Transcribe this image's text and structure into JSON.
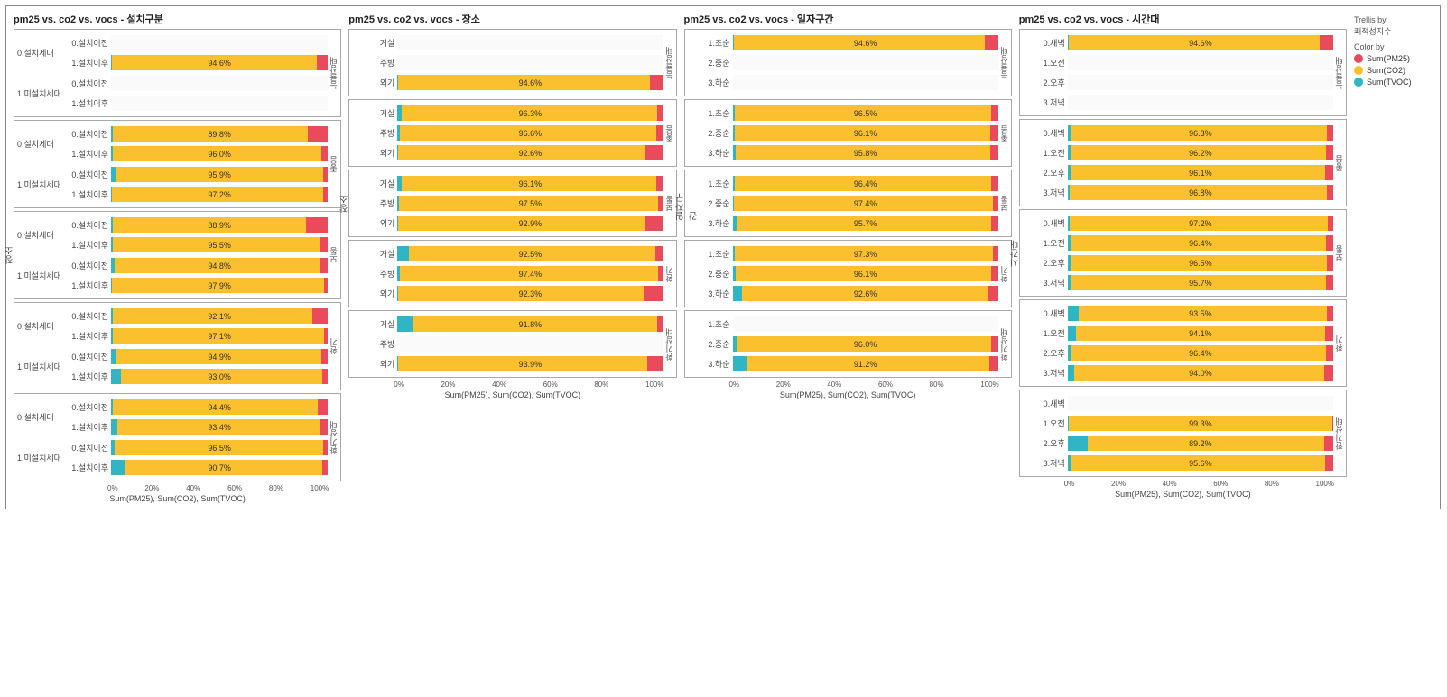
{
  "colors": {
    "pm25": "#e94b5b",
    "co2": "#fbc02d",
    "tvoc": "#2fb5c4",
    "border": "#aaaaaa",
    "grid": "#e0e0e0",
    "bg": "#ffffff",
    "text": "#333333"
  },
  "legend": {
    "trellis_title": "Trellis by",
    "trellis_field": "쾌적성지수",
    "color_title": "Color by",
    "items": [
      {
        "label": "Sum(PM25)",
        "color": "#e94b5b"
      },
      {
        "label": "Sum(CO2)",
        "color": "#fbc02d"
      },
      {
        "label": "Sum(TVOC)",
        "color": "#2fb5c4"
      }
    ]
  },
  "x_ticks": [
    "0%",
    "20%",
    "40%",
    "60%",
    "80%",
    "100%"
  ],
  "x_title": "Sum(PM25), Sum(CO2), Sum(TVOC)",
  "panels": [
    {
      "title": "pm25 vs. co2 vs. vocs - 설치구분",
      "has_group_label": true,
      "yaxis": null,
      "trellis": [
        {
          "label": "능률상태",
          "yaxis": null,
          "groups": [
            {
              "glabel": "0.설치세대",
              "rows": [
                {
                  "cat": "0.설치이전",
                  "co2": 0,
                  "tvoc": 0,
                  "pm25": 0,
                  "value": ""
                },
                {
                  "cat": "1.설치이후",
                  "co2": 94.6,
                  "tvoc": 0.5,
                  "pm25": 4.9,
                  "value": "94.6%"
                }
              ]
            },
            {
              "glabel": "1.미설치세대",
              "rows": [
                {
                  "cat": "0.설치이전",
                  "co2": 0,
                  "tvoc": 0,
                  "pm25": 0,
                  "value": ""
                },
                {
                  "cat": "1.설치이후",
                  "co2": 0,
                  "tvoc": 0,
                  "pm25": 0,
                  "value": ""
                }
              ]
            }
          ]
        },
        {
          "label": "좋음",
          "yaxis": null,
          "groups": [
            {
              "glabel": "0.설치세대",
              "rows": [
                {
                  "cat": "0.설치이전",
                  "co2": 89.8,
                  "tvoc": 1.0,
                  "pm25": 9.2,
                  "value": "89.8%"
                },
                {
                  "cat": "1.설치이후",
                  "co2": 96.0,
                  "tvoc": 0.8,
                  "pm25": 3.2,
                  "value": "96.0%"
                }
              ]
            },
            {
              "glabel": "1.미설치세대",
              "rows": [
                {
                  "cat": "0.설치이전",
                  "co2": 95.9,
                  "tvoc": 2.0,
                  "pm25": 2.1,
                  "value": "95.9%"
                },
                {
                  "cat": "1.설치이후",
                  "co2": 97.2,
                  "tvoc": 0.6,
                  "pm25": 2.2,
                  "value": "97.2%"
                }
              ]
            }
          ]
        },
        {
          "label": "보통",
          "yaxis": "장소",
          "groups": [
            {
              "glabel": "0.설치세대",
              "rows": [
                {
                  "cat": "0.설치이전",
                  "co2": 88.9,
                  "tvoc": 0.8,
                  "pm25": 10.3,
                  "value": "88.9%"
                },
                {
                  "cat": "1.설치이후",
                  "co2": 95.5,
                  "tvoc": 1.0,
                  "pm25": 3.5,
                  "value": "95.5%"
                }
              ]
            },
            {
              "glabel": "1.미설치세대",
              "rows": [
                {
                  "cat": "0.설치이전",
                  "co2": 94.8,
                  "tvoc": 1.5,
                  "pm25": 3.7,
                  "value": "94.8%"
                },
                {
                  "cat": "1.설치이후",
                  "co2": 97.9,
                  "tvoc": 0.5,
                  "pm25": 1.6,
                  "value": "97.9%"
                }
              ]
            }
          ]
        },
        {
          "label": "환기",
          "yaxis": null,
          "groups": [
            {
              "glabel": "0.설치세대",
              "rows": [
                {
                  "cat": "0.설치이전",
                  "co2": 92.1,
                  "tvoc": 0.8,
                  "pm25": 7.1,
                  "value": "92.1%"
                },
                {
                  "cat": "1.설치이후",
                  "co2": 97.1,
                  "tvoc": 1.0,
                  "pm25": 1.9,
                  "value": "97.1%"
                }
              ]
            },
            {
              "glabel": "1.미설치세대",
              "rows": [
                {
                  "cat": "0.설치이전",
                  "co2": 94.9,
                  "tvoc": 2.0,
                  "pm25": 3.1,
                  "value": "94.9%"
                },
                {
                  "cat": "1.설치이후",
                  "co2": 93.0,
                  "tvoc": 4.5,
                  "pm25": 2.5,
                  "value": "93.0%"
                }
              ]
            }
          ]
        },
        {
          "label": "환기상태",
          "yaxis": null,
          "groups": [
            {
              "glabel": "0.설치세대",
              "rows": [
                {
                  "cat": "0.설치이전",
                  "co2": 94.4,
                  "tvoc": 1.0,
                  "pm25": 4.6,
                  "value": "94.4%"
                },
                {
                  "cat": "1.설치이후",
                  "co2": 93.4,
                  "tvoc": 3.0,
                  "pm25": 3.6,
                  "value": "93.4%"
                }
              ]
            },
            {
              "glabel": "1.미설치세대",
              "rows": [
                {
                  "cat": "0.설치이전",
                  "co2": 96.5,
                  "tvoc": 1.5,
                  "pm25": 2.0,
                  "value": "96.5%"
                },
                {
                  "cat": "1.설치이후",
                  "co2": 90.7,
                  "tvoc": 6.5,
                  "pm25": 2.8,
                  "value": "90.7%"
                }
              ]
            }
          ]
        }
      ]
    },
    {
      "title": "pm25 vs. co2 vs. vocs - 장소",
      "has_group_label": false,
      "yaxis": "장소",
      "trellis": [
        {
          "label": "능률상태",
          "groups": [
            {
              "glabel": "",
              "rows": [
                {
                  "cat": "거실",
                  "co2": 0,
                  "tvoc": 0,
                  "pm25": 0,
                  "value": ""
                },
                {
                  "cat": "주방",
                  "co2": 0,
                  "tvoc": 0,
                  "pm25": 0,
                  "value": ""
                },
                {
                  "cat": "외기",
                  "co2": 94.6,
                  "tvoc": 0.4,
                  "pm25": 5.0,
                  "value": "94.6%"
                }
              ]
            }
          ]
        },
        {
          "label": "좋음",
          "groups": [
            {
              "glabel": "",
              "rows": [
                {
                  "cat": "거실",
                  "co2": 96.3,
                  "tvoc": 1.5,
                  "pm25": 2.2,
                  "value": "96.3%"
                },
                {
                  "cat": "주방",
                  "co2": 96.6,
                  "tvoc": 0.8,
                  "pm25": 2.6,
                  "value": "96.6%"
                },
                {
                  "cat": "외기",
                  "co2": 92.6,
                  "tvoc": 0.4,
                  "pm25": 7.0,
                  "value": "92.6%"
                }
              ]
            }
          ]
        },
        {
          "label": "보통",
          "yaxis": "장소",
          "groups": [
            {
              "glabel": "",
              "rows": [
                {
                  "cat": "거실",
                  "co2": 96.1,
                  "tvoc": 1.5,
                  "pm25": 2.4,
                  "value": "96.1%"
                },
                {
                  "cat": "주방",
                  "co2": 97.5,
                  "tvoc": 0.7,
                  "pm25": 1.8,
                  "value": "97.5%"
                },
                {
                  "cat": "외기",
                  "co2": 92.9,
                  "tvoc": 0.3,
                  "pm25": 6.8,
                  "value": "92.9%"
                }
              ]
            }
          ]
        },
        {
          "label": "환기",
          "groups": [
            {
              "glabel": "",
              "rows": [
                {
                  "cat": "거실",
                  "co2": 92.5,
                  "tvoc": 4.5,
                  "pm25": 3.0,
                  "value": "92.5%"
                },
                {
                  "cat": "주방",
                  "co2": 97.4,
                  "tvoc": 0.8,
                  "pm25": 1.8,
                  "value": "97.4%"
                },
                {
                  "cat": "외기",
                  "co2": 92.3,
                  "tvoc": 0.3,
                  "pm25": 7.4,
                  "value": "92.3%"
                }
              ]
            }
          ]
        },
        {
          "label": "환기상태",
          "groups": [
            {
              "glabel": "",
              "rows": [
                {
                  "cat": "거실",
                  "co2": 91.8,
                  "tvoc": 6.0,
                  "pm25": 2.2,
                  "value": "91.8%"
                },
                {
                  "cat": "주방",
                  "co2": 0,
                  "tvoc": 0,
                  "pm25": 0,
                  "value": ""
                },
                {
                  "cat": "외기",
                  "co2": 93.9,
                  "tvoc": 0.3,
                  "pm25": 5.8,
                  "value": "93.9%"
                }
              ]
            }
          ]
        }
      ]
    },
    {
      "title": "pm25 vs. co2 vs. vocs - 일자구간",
      "has_group_label": false,
      "yaxis": "일자구간",
      "trellis": [
        {
          "label": "능률상태",
          "groups": [
            {
              "glabel": "",
              "rows": [
                {
                  "cat": "1.초순",
                  "co2": 94.6,
                  "tvoc": 0.4,
                  "pm25": 5.0,
                  "value": "94.6%"
                },
                {
                  "cat": "2.중순",
                  "co2": 0,
                  "tvoc": 0,
                  "pm25": 0,
                  "value": ""
                },
                {
                  "cat": "3.하순",
                  "co2": 0,
                  "tvoc": 0,
                  "pm25": 0,
                  "value": ""
                }
              ]
            }
          ]
        },
        {
          "label": "좋음",
          "groups": [
            {
              "glabel": "",
              "rows": [
                {
                  "cat": "1.초순",
                  "co2": 96.5,
                  "tvoc": 0.8,
                  "pm25": 2.7,
                  "value": "96.5%"
                },
                {
                  "cat": "2.중순",
                  "co2": 96.1,
                  "tvoc": 1.0,
                  "pm25": 2.9,
                  "value": "96.1%"
                },
                {
                  "cat": "3.하순",
                  "co2": 95.8,
                  "tvoc": 1.2,
                  "pm25": 3.0,
                  "value": "95.8%"
                }
              ]
            }
          ]
        },
        {
          "label": "보통",
          "yaxis": "일자구간",
          "groups": [
            {
              "glabel": "",
              "rows": [
                {
                  "cat": "1.초순",
                  "co2": 96.4,
                  "tvoc": 0.8,
                  "pm25": 2.8,
                  "value": "96.4%"
                },
                {
                  "cat": "2.중순",
                  "co2": 97.4,
                  "tvoc": 0.6,
                  "pm25": 2.0,
                  "value": "97.4%"
                },
                {
                  "cat": "3.하순",
                  "co2": 95.7,
                  "tvoc": 1.5,
                  "pm25": 2.8,
                  "value": "95.7%"
                }
              ]
            }
          ]
        },
        {
          "label": "환기",
          "groups": [
            {
              "glabel": "",
              "rows": [
                {
                  "cat": "1.초순",
                  "co2": 97.3,
                  "tvoc": 0.7,
                  "pm25": 2.0,
                  "value": "97.3%"
                },
                {
                  "cat": "2.중순",
                  "co2": 96.1,
                  "tvoc": 1.2,
                  "pm25": 2.7,
                  "value": "96.1%"
                },
                {
                  "cat": "3.하순",
                  "co2": 92.6,
                  "tvoc": 3.5,
                  "pm25": 3.9,
                  "value": "92.6%"
                }
              ]
            }
          ]
        },
        {
          "label": "환기상태",
          "groups": [
            {
              "glabel": "",
              "rows": [
                {
                  "cat": "1.초순",
                  "co2": 0,
                  "tvoc": 0,
                  "pm25": 0,
                  "value": ""
                },
                {
                  "cat": "2.중순",
                  "co2": 96.0,
                  "tvoc": 1.5,
                  "pm25": 2.5,
                  "value": "96.0%"
                },
                {
                  "cat": "3.하순",
                  "co2": 91.2,
                  "tvoc": 5.5,
                  "pm25": 3.3,
                  "value": "91.2%"
                }
              ]
            }
          ]
        }
      ]
    },
    {
      "title": "pm25 vs. co2 vs. vocs - 시간대",
      "has_group_label": false,
      "yaxis": "시간대",
      "trellis": [
        {
          "label": "능률상태",
          "groups": [
            {
              "glabel": "",
              "rows": [
                {
                  "cat": "0.새벽",
                  "co2": 94.6,
                  "tvoc": 0.4,
                  "pm25": 5.0,
                  "value": "94.6%"
                },
                {
                  "cat": "1.오전",
                  "co2": 0,
                  "tvoc": 0,
                  "pm25": 0,
                  "value": ""
                },
                {
                  "cat": "2.오후",
                  "co2": 0,
                  "tvoc": 0,
                  "pm25": 0,
                  "value": ""
                },
                {
                  "cat": "3.저녁",
                  "co2": 0,
                  "tvoc": 0,
                  "pm25": 0,
                  "value": ""
                }
              ]
            }
          ]
        },
        {
          "label": "좋음",
          "groups": [
            {
              "glabel": "",
              "rows": [
                {
                  "cat": "0.새벽",
                  "co2": 96.3,
                  "tvoc": 1.2,
                  "pm25": 2.5,
                  "value": "96.3%"
                },
                {
                  "cat": "1.오전",
                  "co2": 96.2,
                  "tvoc": 1.0,
                  "pm25": 2.8,
                  "value": "96.2%"
                },
                {
                  "cat": "2.오후",
                  "co2": 96.1,
                  "tvoc": 1.0,
                  "pm25": 2.9,
                  "value": "96.1%"
                },
                {
                  "cat": "3.저녁",
                  "co2": 96.8,
                  "tvoc": 0.8,
                  "pm25": 2.4,
                  "value": "96.8%"
                }
              ]
            }
          ]
        },
        {
          "label": "보통",
          "yaxis": "시간대",
          "groups": [
            {
              "glabel": "",
              "rows": [
                {
                  "cat": "0.새벽",
                  "co2": 97.2,
                  "tvoc": 0.8,
                  "pm25": 2.0,
                  "value": "97.2%"
                },
                {
                  "cat": "1.오전",
                  "co2": 96.4,
                  "tvoc": 1.0,
                  "pm25": 2.6,
                  "value": "96.4%"
                },
                {
                  "cat": "2.오후",
                  "co2": 96.5,
                  "tvoc": 1.0,
                  "pm25": 2.5,
                  "value": "96.5%"
                },
                {
                  "cat": "3.저녁",
                  "co2": 95.7,
                  "tvoc": 1.5,
                  "pm25": 2.8,
                  "value": "95.7%"
                }
              ]
            }
          ]
        },
        {
          "label": "환기",
          "groups": [
            {
              "glabel": "",
              "rows": [
                {
                  "cat": "0.새벽",
                  "co2": 93.5,
                  "tvoc": 4.0,
                  "pm25": 2.5,
                  "value": "93.5%"
                },
                {
                  "cat": "1.오전",
                  "co2": 94.1,
                  "tvoc": 3.0,
                  "pm25": 2.9,
                  "value": "94.1%"
                },
                {
                  "cat": "2.오후",
                  "co2": 96.4,
                  "tvoc": 1.0,
                  "pm25": 2.6,
                  "value": "96.4%"
                },
                {
                  "cat": "3.저녁",
                  "co2": 94.0,
                  "tvoc": 2.5,
                  "pm25": 3.5,
                  "value": "94.0%"
                }
              ]
            }
          ]
        },
        {
          "label": "환기상태",
          "groups": [
            {
              "glabel": "",
              "rows": [
                {
                  "cat": "0.새벽",
                  "co2": 0,
                  "tvoc": 0,
                  "pm25": 0,
                  "value": ""
                },
                {
                  "cat": "1.오전",
                  "co2": 99.3,
                  "tvoc": 0.3,
                  "pm25": 0.4,
                  "value": "99.3%"
                },
                {
                  "cat": "2.오후",
                  "co2": 89.2,
                  "tvoc": 7.5,
                  "pm25": 3.3,
                  "value": "89.2%"
                },
                {
                  "cat": "3.저녁",
                  "co2": 95.6,
                  "tvoc": 1.5,
                  "pm25": 2.9,
                  "value": "95.6%"
                }
              ]
            }
          ]
        }
      ]
    }
  ]
}
